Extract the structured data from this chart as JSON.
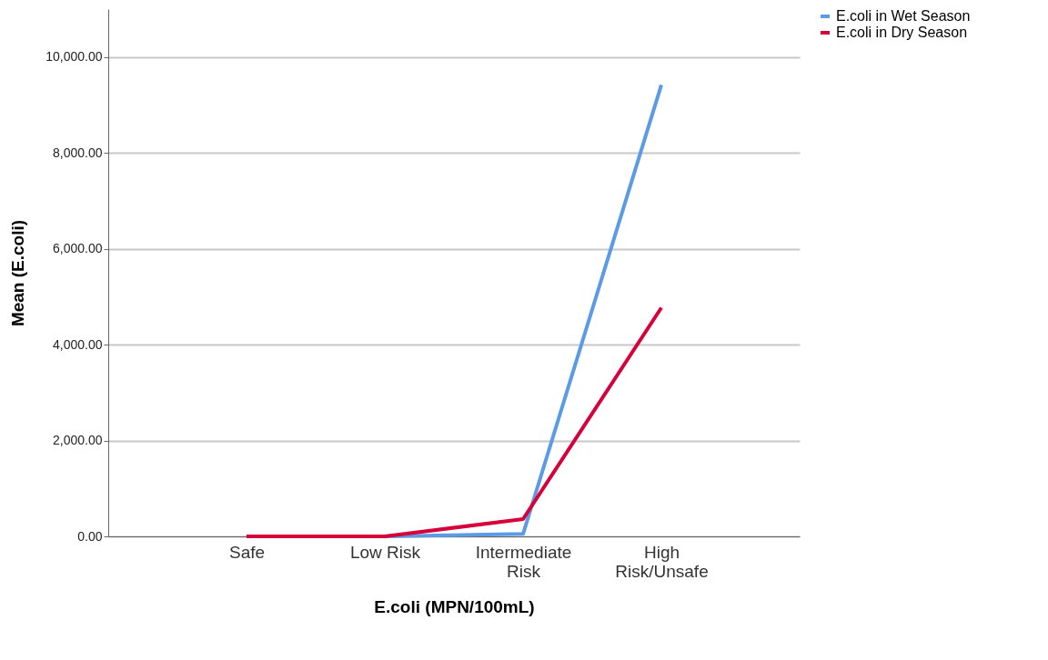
{
  "chart_data": {
    "type": "line",
    "xlabel": "E.coli (MPN/100mL)",
    "ylabel": "Mean (E.coli)",
    "categories": [
      "Safe",
      "Low Risk",
      "Intermediate Risk",
      "High Risk/Unsafe"
    ],
    "series": [
      {
        "name": "E.coli in Wet Season",
        "color": "#5b9be6",
        "values": [
          0,
          0,
          50,
          9420
        ]
      },
      {
        "name": "E.coli in Dry Season",
        "color": "#d6003a",
        "values": [
          0,
          0,
          360,
          4770
        ]
      }
    ],
    "ylim": [
      0,
      11000
    ],
    "yticks": [
      {
        "value": 0,
        "label": "0.00"
      },
      {
        "value": 2000,
        "label": "2,000.00"
      },
      {
        "value": 4000,
        "label": "4,000.00"
      },
      {
        "value": 6000,
        "label": "6,000.00"
      },
      {
        "value": 8000,
        "label": "8,000.00"
      },
      {
        "value": 10000,
        "label": "10,000.00"
      }
    ],
    "grid": "y",
    "legend": "top right",
    "marker": "none",
    "line_style": "solid"
  }
}
